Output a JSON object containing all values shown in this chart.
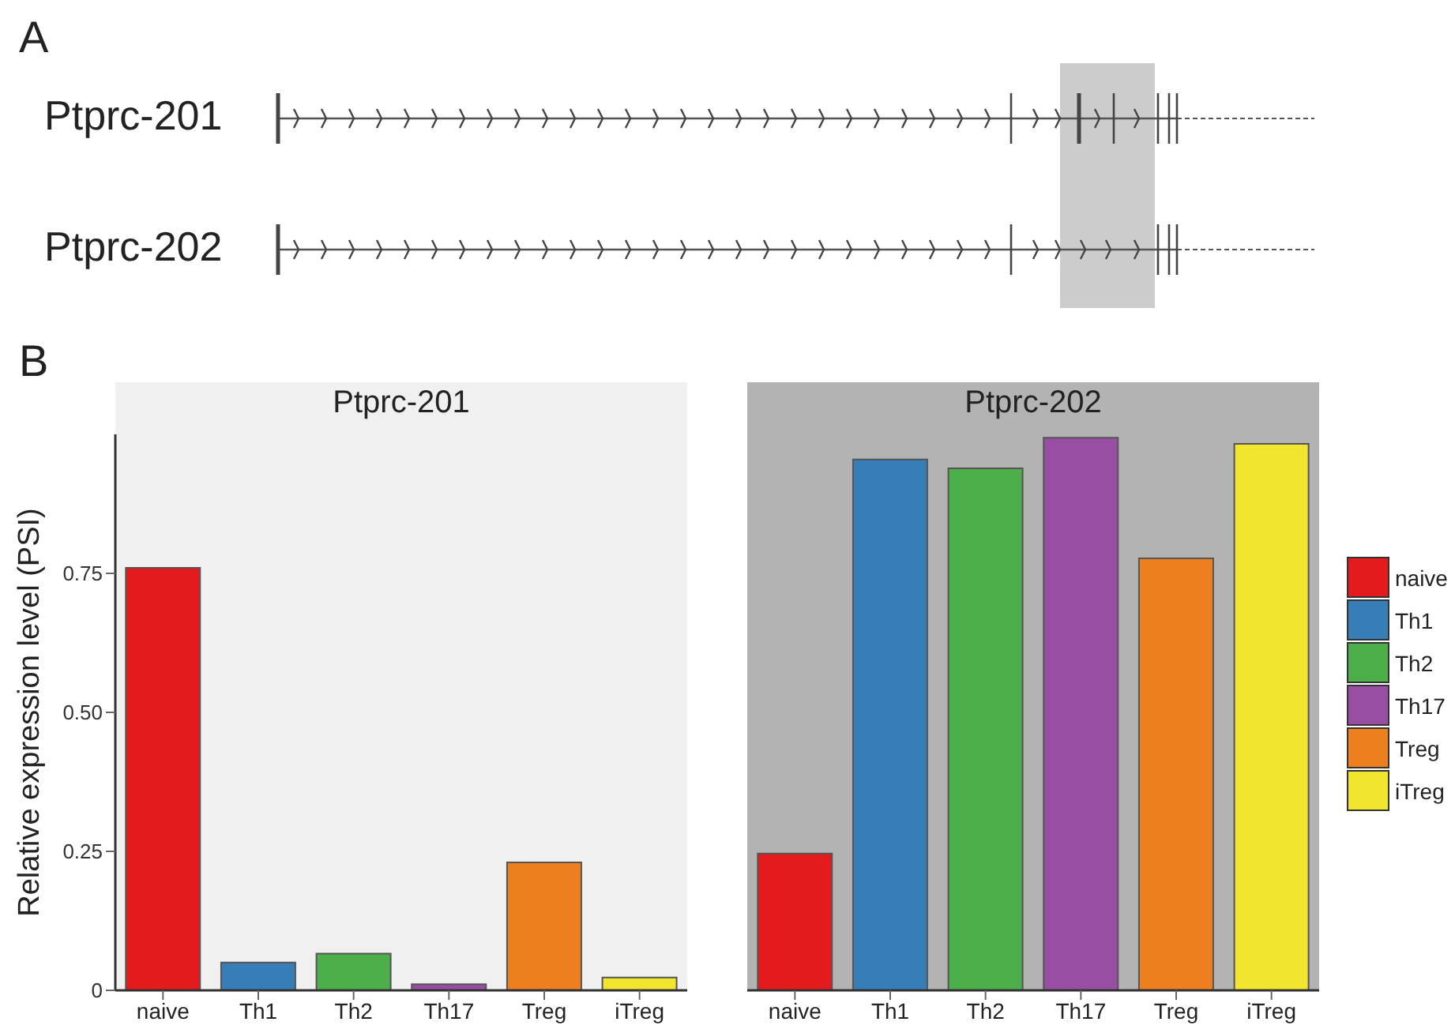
{
  "chart_data": [
    {
      "type": "other",
      "annotations": [
        "A",
        "Ptprc-201",
        "Ptprc-202"
      ]
    },
    {
      "type": "bar",
      "title": "Ptprc-201",
      "ylabel": "Relative expression level (PSI)",
      "annotations": [
        "B"
      ],
      "categories": [
        "naive",
        "Th1",
        "Th2",
        "Th17",
        "Treg",
        "iTreg"
      ],
      "stacked": true,
      "series": [
        {
          "color": "#e41a1c",
          "values": [
            0.76,
            null,
            null,
            null,
            null,
            null
          ]
        },
        {
          "color": "#377eb8",
          "values": [
            null,
            0.05,
            null,
            null,
            null,
            null
          ]
        },
        {
          "color": "#4daf4a",
          "values": [
            null,
            null,
            0.066,
            null,
            null,
            null
          ]
        },
        {
          "color": "#984ea3",
          "values": [
            null,
            null,
            null,
            0.011,
            null,
            null
          ]
        },
        {
          "color": "#ee7f1e",
          "values": [
            null,
            null,
            null,
            null,
            0.23,
            null
          ]
        },
        {
          "color": "#f2e52e",
          "values": [
            null,
            null,
            null,
            null,
            null,
            0.023
          ]
        }
      ],
      "ylim": [
        0,
        1
      ],
      "yticks": [
        0,
        0.25,
        {
          "value": 0.5,
          "label": "0.50"
        },
        0.75
      ],
      "grid": false,
      "legend": false
    },
    {
      "type": "bar",
      "title": "Ptprc-202",
      "categories": [
        "naive",
        "Th1",
        "Th2",
        "Th17",
        "Treg",
        "iTreg"
      ],
      "stacked": true,
      "series": [
        {
          "name": "naive",
          "color": "#e41a1c",
          "values": [
            0.246,
            null,
            null,
            null,
            null,
            null
          ]
        },
        {
          "name": "Th1",
          "color": "#377eb8",
          "values": [
            null,
            0.955,
            null,
            null,
            null,
            null
          ]
        },
        {
          "name": "Th2",
          "color": "#4daf4a",
          "values": [
            null,
            null,
            0.939,
            null,
            null,
            null
          ]
        },
        {
          "name": "Th17",
          "color": "#984ea3",
          "values": [
            null,
            null,
            null,
            0.994,
            null,
            null
          ]
        },
        {
          "name": "Treg",
          "color": "#ee7f1e",
          "values": [
            null,
            null,
            null,
            null,
            0.777,
            null
          ]
        },
        {
          "name": "iTreg",
          "color": "#f2e52e",
          "values": [
            null,
            null,
            null,
            null,
            null,
            0.983
          ]
        }
      ],
      "ylim": [
        0,
        1
      ],
      "tick_labels": "x",
      "grid": false,
      "legend": "right"
    }
  ]
}
